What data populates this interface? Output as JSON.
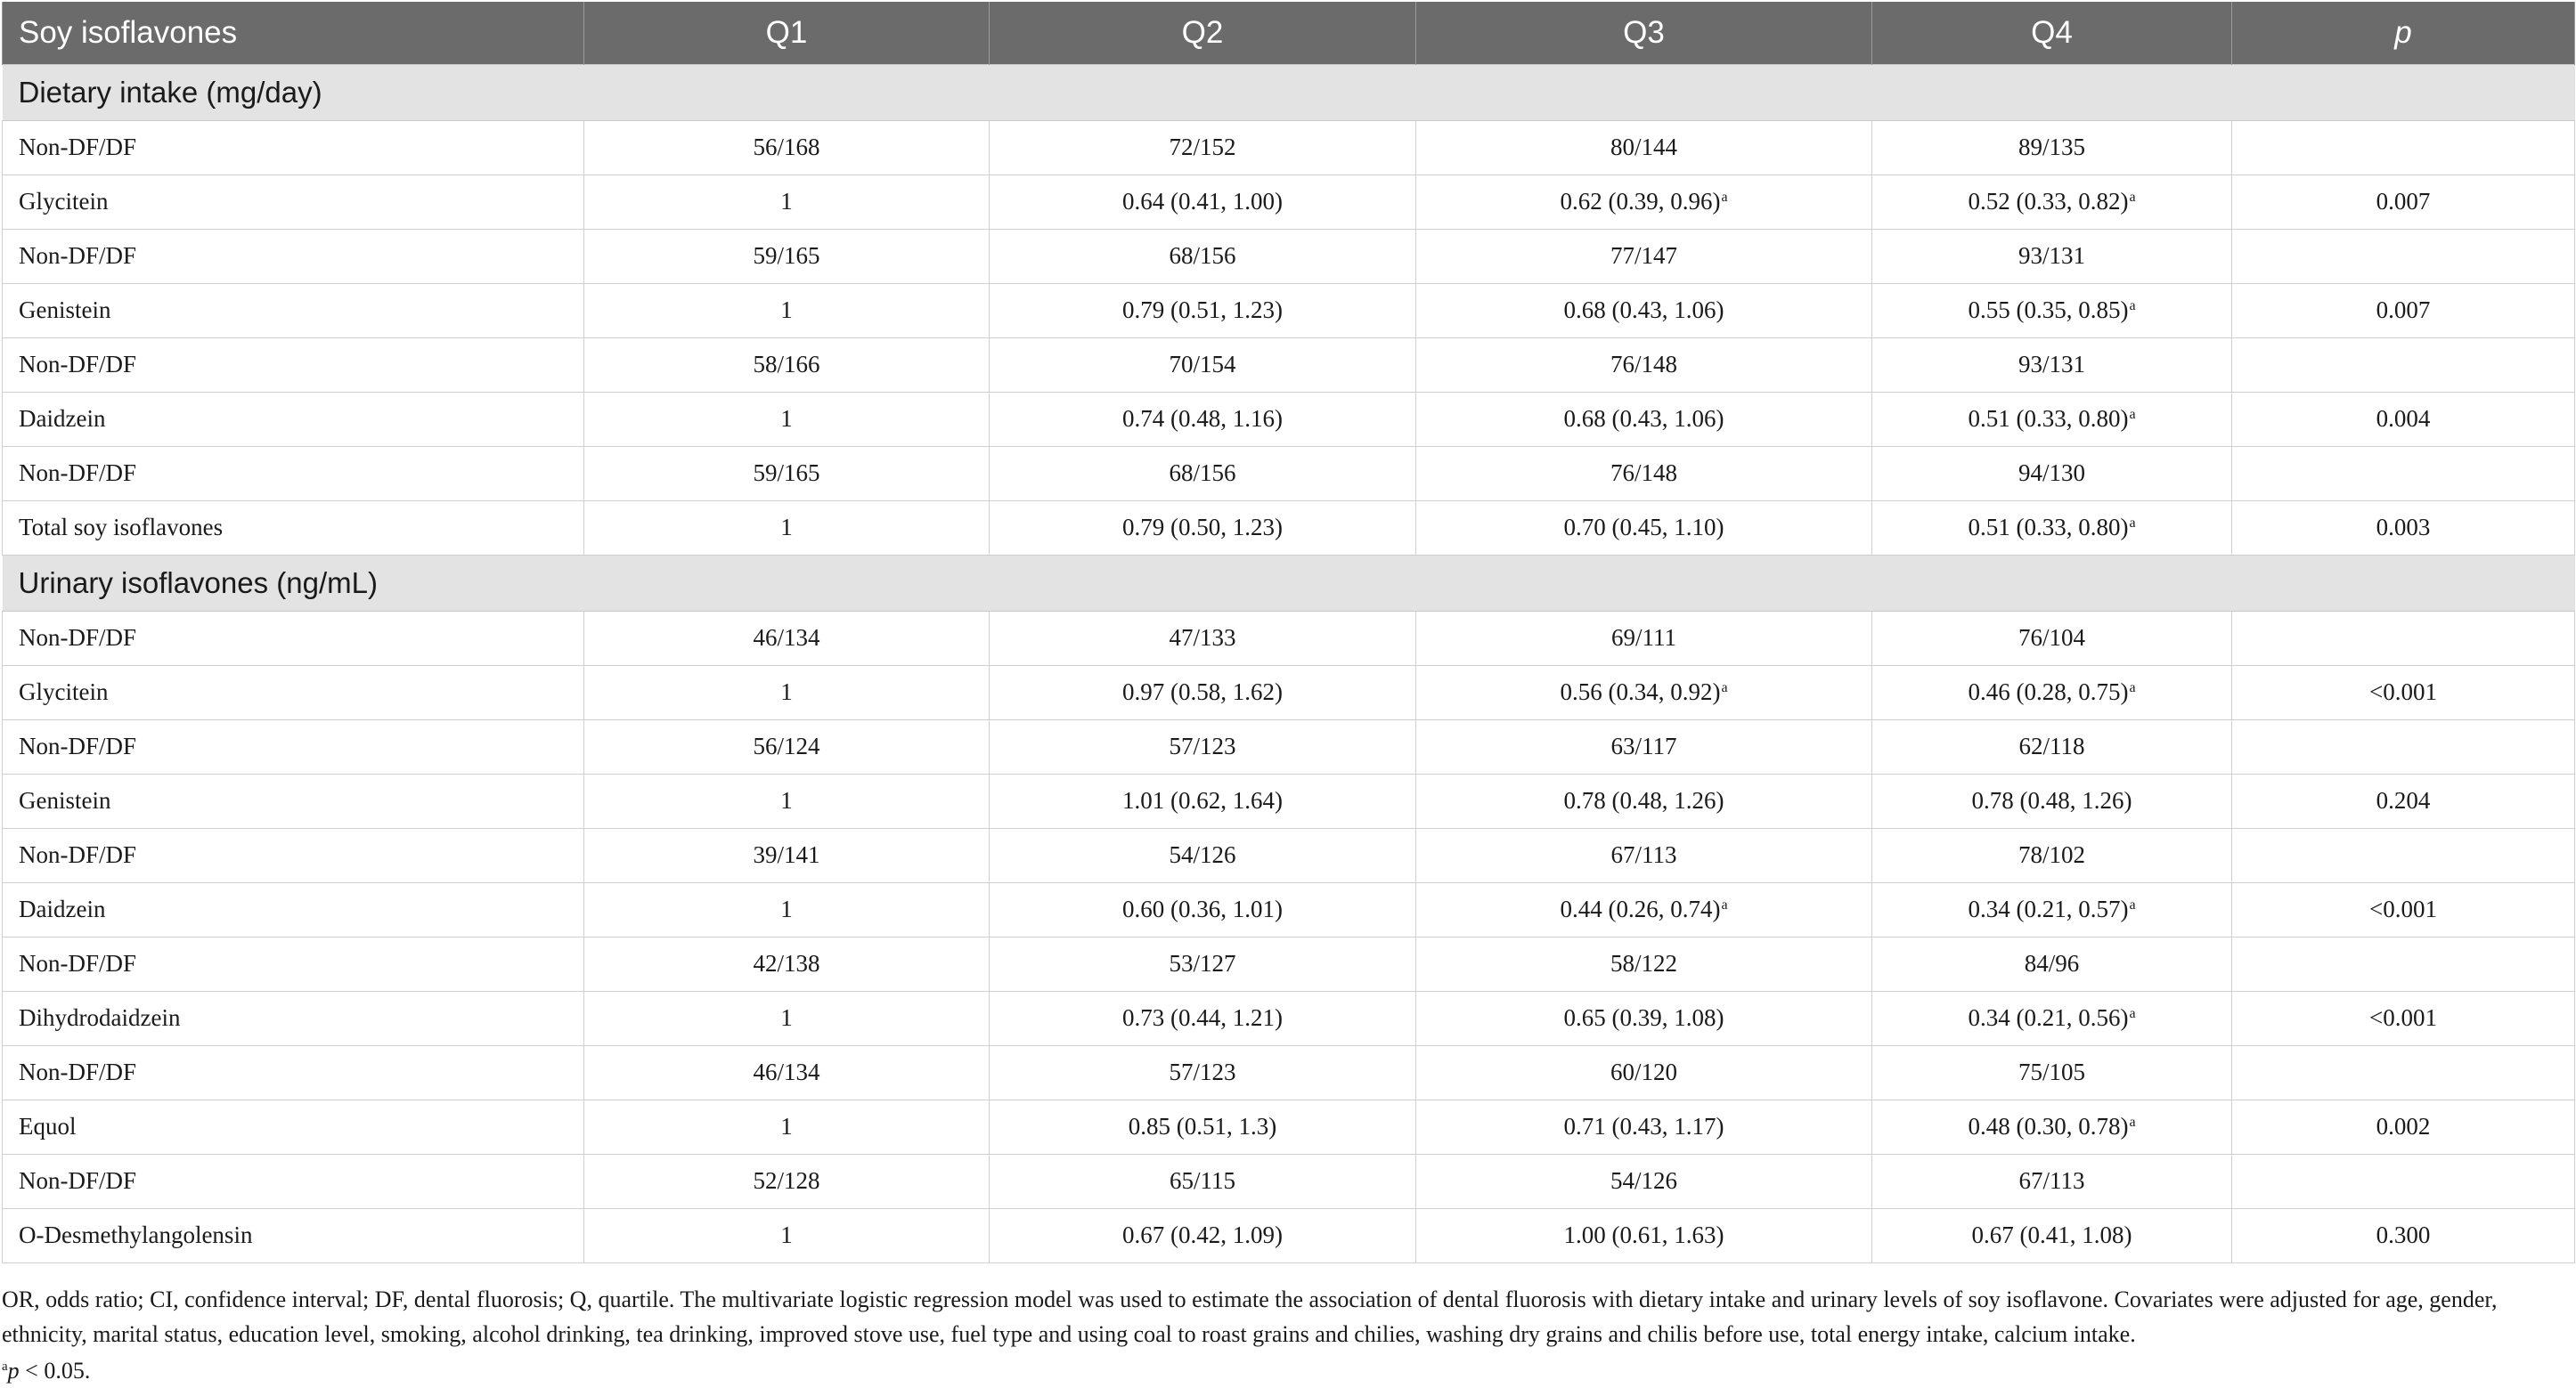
{
  "table": {
    "headers": [
      "Soy isoflavones",
      "Q1",
      "Q2",
      "Q3",
      "Q4",
      "p"
    ],
    "sections": [
      {
        "title": "Dietary intake (mg/day)",
        "rows": [
          {
            "label": "Non-DF/DF",
            "q1": "56/168",
            "q2": "72/152",
            "q3": "80/144",
            "q4": "89/135",
            "p": "",
            "sig": {}
          },
          {
            "label": "Glycitein",
            "q1": "1",
            "q2": "0.64 (0.41, 1.00)",
            "q3": "0.62 (0.39, 0.96)",
            "q4": "0.52 (0.33, 0.82)",
            "p": "0.007",
            "sig": {
              "q3": "a",
              "q4": "a"
            }
          },
          {
            "label": "Non-DF/DF",
            "q1": "59/165",
            "q2": "68/156",
            "q3": "77/147",
            "q4": "93/131",
            "p": "",
            "sig": {}
          },
          {
            "label": "Genistein",
            "q1": "1",
            "q2": "0.79 (0.51, 1.23)",
            "q3": "0.68 (0.43, 1.06)",
            "q4": "0.55 (0.35, 0.85)",
            "p": "0.007",
            "sig": {
              "q4": "a"
            }
          },
          {
            "label": "Non-DF/DF",
            "q1": "58/166",
            "q2": "70/154",
            "q3": "76/148",
            "q4": "93/131",
            "p": "",
            "sig": {}
          },
          {
            "label": "Daidzein",
            "q1": "1",
            "q2": "0.74 (0.48, 1.16)",
            "q3": "0.68 (0.43, 1.06)",
            "q4": "0.51 (0.33, 0.80)",
            "p": "0.004",
            "sig": {
              "q4": "a"
            }
          },
          {
            "label": "Non-DF/DF",
            "q1": "59/165",
            "q2": "68/156",
            "q3": "76/148",
            "q4": "94/130",
            "p": "",
            "sig": {}
          },
          {
            "label": "Total soy isoflavones",
            "q1": "1",
            "q2": "0.79 (0.50, 1.23)",
            "q3": "0.70 (0.45, 1.10)",
            "q4": "0.51 (0.33, 0.80)",
            "p": "0.003",
            "sig": {
              "q4": "a"
            }
          }
        ]
      },
      {
        "title": "Urinary isoflavones (ng/mL)",
        "rows": [
          {
            "label": "Non-DF/DF",
            "q1": "46/134",
            "q2": "47/133",
            "q3": "69/111",
            "q4": "76/104",
            "p": "",
            "sig": {}
          },
          {
            "label": "Glycitein",
            "q1": "1",
            "q2": "0.97 (0.58, 1.62)",
            "q3": "0.56 (0.34, 0.92)",
            "q4": "0.46 (0.28, 0.75)",
            "p": "<0.001",
            "sig": {
              "q3": "a",
              "q4": "a"
            }
          },
          {
            "label": "Non-DF/DF",
            "q1": "56/124",
            "q2": "57/123",
            "q3": "63/117",
            "q4": "62/118",
            "p": "",
            "sig": {}
          },
          {
            "label": "Genistein",
            "q1": "1",
            "q2": "1.01 (0.62, 1.64)",
            "q3": "0.78 (0.48, 1.26)",
            "q4": "0.78 (0.48, 1.26)",
            "p": "0.204",
            "sig": {}
          },
          {
            "label": "Non-DF/DF",
            "q1": "39/141",
            "q2": "54/126",
            "q3": "67/113",
            "q4": "78/102",
            "p": "",
            "sig": {}
          },
          {
            "label": "Daidzein",
            "q1": "1",
            "q2": "0.60 (0.36, 1.01)",
            "q3": "0.44 (0.26, 0.74)",
            "q4": "0.34 (0.21, 0.57)",
            "p": "<0.001",
            "sig": {
              "q3": "a",
              "q4": "a"
            }
          },
          {
            "label": "Non-DF/DF",
            "q1": "42/138",
            "q2": "53/127",
            "q3": "58/122",
            "q4": "84/96",
            "p": "",
            "sig": {}
          },
          {
            "label": "Dihydrodaidzein",
            "q1": "1",
            "q2": "0.73 (0.44, 1.21)",
            "q3": "0.65 (0.39, 1.08)",
            "q4": "0.34 (0.21, 0.56)",
            "p": "<0.001",
            "sig": {
              "q4": "a"
            }
          },
          {
            "label": "Non-DF/DF",
            "q1": "46/134",
            "q2": "57/123",
            "q3": "60/120",
            "q4": "75/105",
            "p": "",
            "sig": {}
          },
          {
            "label": "Equol",
            "q1": "1",
            "q2": "0.85 (0.51, 1.3)",
            "q3": "0.71 (0.43, 1.17)",
            "q4": "0.48 (0.30, 0.78)",
            "p": "0.002",
            "sig": {
              "q4": "a"
            }
          },
          {
            "label": "Non-DF/DF",
            "q1": "52/128",
            "q2": "65/115",
            "q3": "54/126",
            "q4": "67/113",
            "p": "",
            "sig": {}
          },
          {
            "label": "O-Desmethylangolensin",
            "q1": "1",
            "q2": "0.67 (0.42, 1.09)",
            "q3": "1.00 (0.61, 1.63)",
            "q4": "0.67 (0.41, 1.08)",
            "p": "0.300",
            "sig": {}
          }
        ]
      }
    ]
  },
  "footnote": {
    "text": "OR, odds ratio; CI, confidence interval; DF, dental fluorosis; Q, quartile. The multivariate logistic regression model was used to estimate the association of dental fluorosis with dietary intake and urinary levels of soy isoflavone. Covariates were adjusted for age, gender, ethnicity, marital status, education level, smoking, alcohol drinking, tea drinking, improved stove use, fuel type and using coal to roast grains and chilies, washing dry grains and chilis before use, total energy intake, calcium intake.",
    "sig_mark": "a",
    "sig_p": "p",
    "sig_text": " < 0.05."
  }
}
